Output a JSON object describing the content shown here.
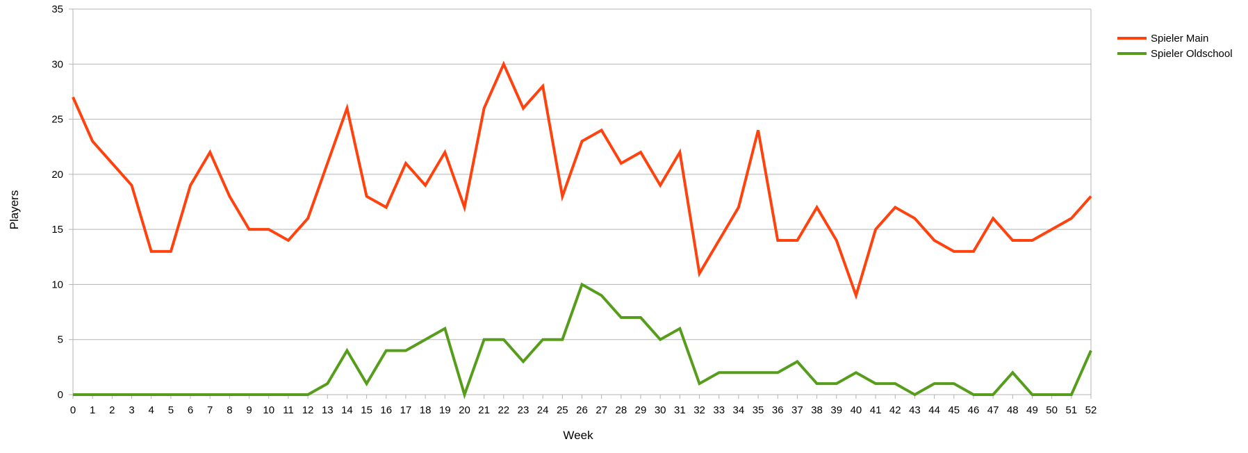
{
  "chart_data": {
    "type": "line",
    "title": "",
    "xlabel": "Week",
    "ylabel": "Players",
    "x": [
      0,
      1,
      2,
      3,
      4,
      5,
      6,
      7,
      8,
      9,
      10,
      11,
      12,
      13,
      14,
      15,
      16,
      17,
      18,
      19,
      20,
      21,
      22,
      23,
      24,
      25,
      26,
      27,
      28,
      29,
      30,
      31,
      32,
      33,
      34,
      35,
      36,
      37,
      38,
      39,
      40,
      41,
      42,
      43,
      44,
      45,
      46,
      47,
      48,
      49,
      50,
      51,
      52
    ],
    "xlim": [
      0,
      52
    ],
    "ylim": [
      0,
      35
    ],
    "yticks": [
      0,
      5,
      10,
      15,
      20,
      25,
      30,
      35
    ],
    "grid": "horizontal",
    "legend_position": "right",
    "series": [
      {
        "name": "Spieler Main",
        "color": "#ff420e",
        "values": [
          27,
          23,
          21,
          19,
          13,
          13,
          19,
          22,
          18,
          15,
          15,
          14,
          16,
          21,
          26,
          18,
          17,
          21,
          19,
          22,
          17,
          26,
          30,
          26,
          28,
          18,
          23,
          24,
          21,
          22,
          19,
          22,
          11,
          14,
          17,
          24,
          14,
          14,
          17,
          14,
          9,
          15,
          17,
          16,
          14,
          13,
          13,
          16,
          14,
          14,
          15,
          16,
          18
        ]
      },
      {
        "name": "Spieler Oldschool",
        "color": "#579d1c",
        "values": [
          0,
          0,
          0,
          0,
          0,
          0,
          0,
          0,
          0,
          0,
          0,
          0,
          0,
          1,
          4,
          1,
          4,
          4,
          5,
          6,
          0,
          5,
          5,
          3,
          5,
          5,
          10,
          9,
          7,
          7,
          5,
          6,
          1,
          2,
          2,
          2,
          2,
          3,
          1,
          1,
          2,
          1,
          1,
          0,
          1,
          1,
          0,
          0,
          2,
          0,
          0,
          0,
          4
        ]
      }
    ]
  }
}
